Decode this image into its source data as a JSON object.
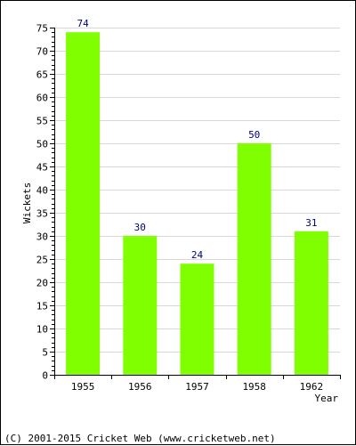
{
  "chart_data": {
    "type": "bar",
    "categories": [
      "1955",
      "1956",
      "1957",
      "1958",
      "1962"
    ],
    "values": [
      74,
      30,
      24,
      50,
      31
    ],
    "data_labels": [
      "74",
      "30",
      "24",
      "50",
      "31"
    ],
    "xlabel": "Year",
    "ylabel": "Wickets",
    "ylim": [
      0,
      75
    ],
    "yticks": [
      "0",
      "5",
      "10",
      "15",
      "20",
      "25",
      "30",
      "35",
      "40",
      "45",
      "50",
      "55",
      "60",
      "65",
      "70",
      "75"
    ],
    "grid": true,
    "colors": {
      "bar": "#7fff00",
      "label": "#000080",
      "axis": "#000000",
      "grid": "#d8d8d8"
    }
  },
  "footer": {
    "copyright": "(C) 2001-2015 Cricket Web (www.cricketweb.net)"
  }
}
